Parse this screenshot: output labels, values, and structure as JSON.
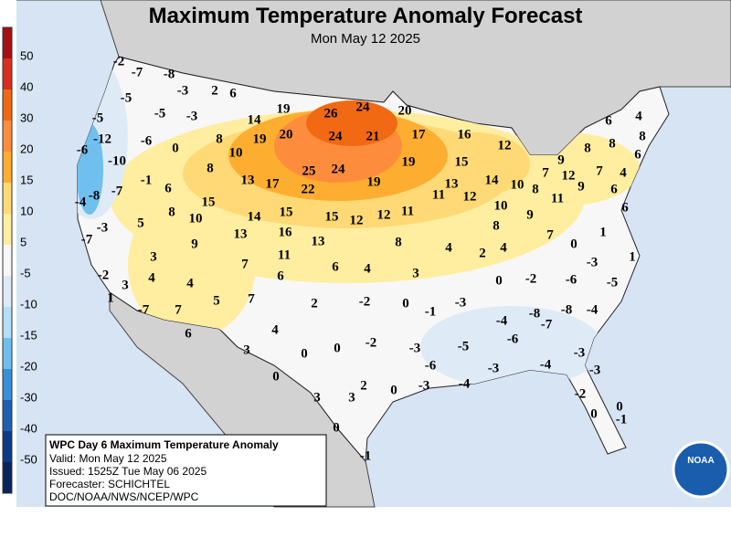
{
  "header": {
    "title": "Maximum Temperature Anomaly Forecast",
    "subtitle": "Mon May 12 2025"
  },
  "legend": {
    "ticks": [
      50,
      40,
      30,
      20,
      15,
      10,
      5,
      -5,
      -10,
      -15,
      -20,
      -30,
      -40,
      -50
    ],
    "colors": [
      "#a50f15",
      "#d7301f",
      "#f16913",
      "#fd8d3c",
      "#fdae30",
      "#fed976",
      "#ffeda0",
      "#f7f7f7",
      "#deebf7",
      "#b3e0f5",
      "#6fc0ee",
      "#3a8fd9",
      "#1f5fb0",
      "#0d3a85",
      "#08245a"
    ]
  },
  "stations": [
    -2,
    -8,
    -7,
    -3,
    2,
    6,
    -5,
    -5,
    -3,
    -5,
    -12,
    -6,
    0,
    8,
    14,
    19,
    26,
    24,
    20,
    -6,
    -10,
    19,
    20,
    24,
    21,
    17,
    16,
    12,
    10,
    8,
    25,
    24,
    19,
    15,
    9,
    8,
    8,
    6,
    4,
    8,
    -1,
    6,
    13,
    17,
    22,
    19,
    13,
    14,
    10,
    8,
    12,
    7,
    9,
    7,
    4,
    6,
    6,
    -4,
    -8,
    -7,
    15,
    8,
    10,
    14,
    15,
    15,
    12,
    12,
    11,
    11,
    12,
    10,
    11,
    8,
    9,
    6,
    -3,
    5,
    13,
    16,
    13,
    9,
    -7,
    8,
    4,
    2,
    4,
    7,
    0,
    1,
    11,
    3,
    7,
    6,
    4,
    3,
    -3,
    1,
    -2,
    3,
    4,
    4,
    6,
    0,
    -2,
    -6,
    -5,
    1,
    5,
    7,
    2,
    -2,
    0,
    -3,
    -7,
    7,
    -1,
    -4,
    -8,
    -7,
    -8,
    -4,
    4,
    6,
    -6,
    -5,
    -3,
    -2,
    0,
    0,
    3,
    -3,
    0,
    -6,
    -3,
    -4,
    -3,
    2,
    3,
    3,
    0,
    -3,
    -4,
    -2,
    0,
    0,
    0,
    -1,
    -1
  ],
  "info": {
    "title": "WPC Day 6 Maximum Temperature Anomaly",
    "lines": [
      "Valid: Mon May 12 2025",
      "Issued: 1525Z Tue May 06 2025",
      "Forecaster: SCHICHTEL",
      "DOC/NOAA/NWS/NCEP/WPC"
    ]
  },
  "logo": "NOAA"
}
